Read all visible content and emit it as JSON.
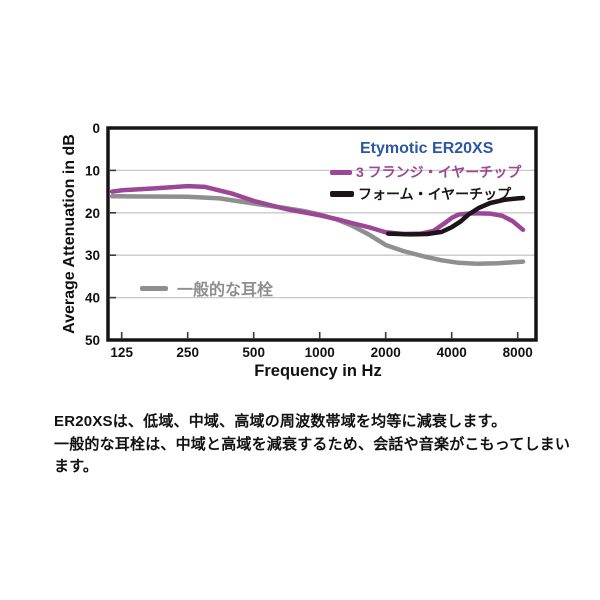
{
  "chart_data": {
    "type": "line",
    "title": "Etymotic ER20XS",
    "xlabel": "Frequency in Hz",
    "ylabel": "Average Attenuation in dB",
    "x_scale": "log2",
    "x_ticks": [
      125,
      250,
      500,
      1000,
      2000,
      4000,
      8000
    ],
    "y_ticks": [
      0,
      10,
      20,
      30,
      40,
      50
    ],
    "ylim": [
      0,
      50
    ],
    "xlim": [
      113,
      9000
    ],
    "y_axis_inverted_attenuation": true,
    "grid": "horizontal-light",
    "legend_position": "top-right",
    "series": [
      {
        "name": "3 フランジ・イヤーチップ",
        "color": "#9c4796",
        "points": [
          [
            113,
            15.0
          ],
          [
            125,
            14.7
          ],
          [
            180,
            14.2
          ],
          [
            250,
            13.7
          ],
          [
            300,
            13.9
          ],
          [
            400,
            15.5
          ],
          [
            500,
            17.2
          ],
          [
            700,
            19.1
          ],
          [
            850,
            19.9
          ],
          [
            1000,
            20.6
          ],
          [
            1200,
            21.5
          ],
          [
            1400,
            22.4
          ],
          [
            1700,
            23.5
          ],
          [
            2000,
            24.6
          ],
          [
            2400,
            25.0
          ],
          [
            2900,
            24.9
          ],
          [
            3300,
            24.3
          ],
          [
            3700,
            22.5
          ],
          [
            4000,
            21.2
          ],
          [
            4300,
            20.4
          ],
          [
            5000,
            20.1
          ],
          [
            6000,
            20.2
          ],
          [
            6800,
            20.7
          ],
          [
            7600,
            22.0
          ],
          [
            8460,
            24.0
          ]
        ]
      },
      {
        "name": "フォーム・イヤーチップ",
        "color": "#1c1416",
        "points": [
          [
            2050,
            24.9
          ],
          [
            2600,
            25.1
          ],
          [
            3100,
            25.0
          ],
          [
            3600,
            24.5
          ],
          [
            4000,
            23.4
          ],
          [
            4400,
            22.0
          ],
          [
            4800,
            20.3
          ],
          [
            5300,
            18.9
          ],
          [
            6000,
            17.7
          ],
          [
            7000,
            16.9
          ],
          [
            8000,
            16.6
          ],
          [
            8460,
            16.5
          ]
        ]
      },
      {
        "name": "一般的な耳栓",
        "color": "#8f8f8f",
        "points": [
          [
            113,
            16.1
          ],
          [
            125,
            16.1
          ],
          [
            250,
            16.2
          ],
          [
            350,
            16.6
          ],
          [
            500,
            17.8
          ],
          [
            700,
            18.9
          ],
          [
            850,
            19.6
          ],
          [
            1000,
            20.4
          ],
          [
            1200,
            21.6
          ],
          [
            1400,
            23.0
          ],
          [
            1700,
            25.3
          ],
          [
            2000,
            27.6
          ],
          [
            2400,
            29.0
          ],
          [
            3000,
            30.3
          ],
          [
            3600,
            31.2
          ],
          [
            4300,
            31.8
          ],
          [
            5200,
            32.0
          ],
          [
            6500,
            31.9
          ],
          [
            8460,
            31.5
          ]
        ]
      }
    ]
  },
  "axes": {
    "x_title": "Frequency in Hz",
    "y_title": "Average Attenuation in dB"
  },
  "legend": {
    "title": "Etymotic ER20XS",
    "title_color": "#2b57a5",
    "items": [
      {
        "label": "3 フランジ・イヤーチップ",
        "color": "#9c4796"
      },
      {
        "label": "フォーム・イヤーチップ",
        "color": "#1c1416"
      }
    ]
  },
  "annotation": {
    "label": "一般的な耳栓",
    "color": "#8f8f8f"
  },
  "description": {
    "line1": "ER20XSは、低域、中域、高域の周波数帯域を均等に減衰します。",
    "line2": "一般的な耳栓は、中域と高域を減衰するため、会話や音楽がこもってしまいます。"
  }
}
